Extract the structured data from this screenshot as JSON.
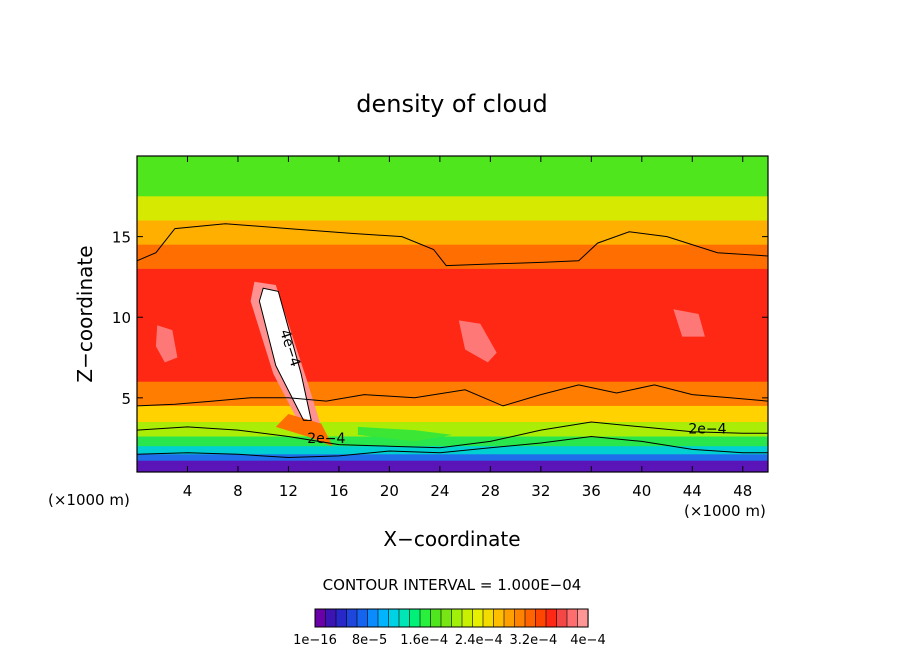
{
  "chart_data": {
    "type": "heatmap",
    "title": "density of cloud",
    "xlabel": "X−coordinate",
    "ylabel": "Z−coordinate",
    "x_unit_left": "(×1000 m)",
    "x_unit_right": "(×1000 m)",
    "xlim": [
      0,
      50
    ],
    "ylim": [
      0.4,
      20
    ],
    "x_ticks": [
      4,
      8,
      12,
      16,
      20,
      24,
      28,
      32,
      36,
      40,
      44,
      48
    ],
    "y_ticks": [
      5,
      10,
      15
    ],
    "contour_interval_text": "CONTOUR INTERVAL = 1.000E−04",
    "contour_labels": [
      {
        "text": "4e−4",
        "x": 11.8,
        "z": 8.0
      },
      {
        "text": "2e−4",
        "x": 15.0,
        "z": 2.2
      },
      {
        "text": "2e−4",
        "x": 45.2,
        "z": 2.8
      }
    ],
    "colorbar": {
      "colors": [
        "#6a00a8",
        "#3c14b4",
        "#2828c8",
        "#1e46dc",
        "#1464f0",
        "#0a8cff",
        "#00b4ff",
        "#00d2e6",
        "#00e6b4",
        "#00f078",
        "#28f03c",
        "#50e61e",
        "#78e614",
        "#a0f00a",
        "#c8f000",
        "#e6f000",
        "#f5dc00",
        "#ffbe00",
        "#ffa000",
        "#ff8200",
        "#ff6400",
        "#ff4600",
        "#ff2814",
        "#f54646",
        "#ff6e6e",
        "#ff9696"
      ],
      "tick_labels": [
        "1e−16",
        "8e−5",
        "1.6e−4",
        "2.4e−4",
        "3.2e−4",
        "4e−4"
      ],
      "range": [
        0,
        0.0004
      ]
    },
    "color_scale": {
      "stops": [
        {
          "value": 0.0,
          "color": "#6a00a8"
        },
        {
          "value": 4e-05,
          "color": "#2850e6"
        },
        {
          "value": 8e-05,
          "color": "#00c8f0"
        },
        {
          "value": 0.00012,
          "color": "#00e678"
        },
        {
          "value": 0.00016,
          "color": "#50e61e"
        },
        {
          "value": 0.0002,
          "color": "#c8f000"
        },
        {
          "value": 0.00024,
          "color": "#ffd200"
        },
        {
          "value": 0.00028,
          "color": "#ff8c00"
        },
        {
          "value": 0.00032,
          "color": "#ff5000"
        },
        {
          "value": 0.00035,
          "color": "#ff2814"
        },
        {
          "value": 0.00038,
          "color": "#ff7878"
        },
        {
          "value": 0.0004,
          "color": "#ffaaaa"
        },
        {
          "value": 0.00045,
          "color": "#ffffff"
        }
      ]
    },
    "bands_top_to_bottom": [
      {
        "z_top": 20.0,
        "z_bottom": 17.5,
        "value": 0.00016
      },
      {
        "z_top": 17.5,
        "z_bottom": 16.0,
        "value": 0.00021
      },
      {
        "z_top": 16.0,
        "z_bottom": 14.5,
        "value": 0.00026
      },
      {
        "z_top": 14.5,
        "z_bottom": 13.0,
        "value": 0.0003
      },
      {
        "z_top": 13.0,
        "z_bottom": 6.0,
        "value": 0.00035
      },
      {
        "z_top": 6.0,
        "z_bottom": 4.5,
        "value": 0.00029
      },
      {
        "z_top": 4.5,
        "z_bottom": 3.5,
        "value": 0.00024
      },
      {
        "z_top": 3.5,
        "z_bottom": 2.6,
        "value": 0.00019
      },
      {
        "z_top": 2.6,
        "z_bottom": 2.0,
        "value": 0.00014
      },
      {
        "z_top": 2.0,
        "z_bottom": 1.5,
        "value": 9e-05
      },
      {
        "z_top": 1.5,
        "z_bottom": 1.1,
        "value": 5e-05
      },
      {
        "z_top": 1.1,
        "z_bottom": 0.4,
        "value": 1e-05
      }
    ],
    "features": [
      {
        "name": "tilted-core-outer",
        "value": 0.00039,
        "points": [
          [
            9.3,
            12.2
          ],
          [
            11.0,
            12.0
          ],
          [
            13.5,
            6.0
          ],
          [
            14.6,
            3.2
          ],
          [
            13.0,
            3.2
          ],
          [
            10.8,
            6.5
          ],
          [
            9.0,
            11.0
          ]
        ]
      },
      {
        "name": "tilted-core-max",
        "value": 0.00045,
        "points": [
          [
            10.0,
            11.8
          ],
          [
            11.2,
            11.6
          ],
          [
            13.0,
            6.5
          ],
          [
            13.8,
            3.6
          ],
          [
            13.2,
            3.6
          ],
          [
            11.0,
            7.0
          ],
          [
            9.7,
            11.0
          ]
        ]
      },
      {
        "name": "patch-left",
        "value": 0.00038,
        "points": [
          [
            1.6,
            9.5
          ],
          [
            2.8,
            9.2
          ],
          [
            3.2,
            7.5
          ],
          [
            2.2,
            7.2
          ],
          [
            1.5,
            8.2
          ]
        ]
      },
      {
        "name": "patch-center",
        "value": 0.00038,
        "points": [
          [
            25.5,
            9.8
          ],
          [
            27.2,
            9.6
          ],
          [
            28.5,
            7.8
          ],
          [
            27.8,
            7.2
          ],
          [
            26.0,
            8.0
          ]
        ]
      },
      {
        "name": "patch-right",
        "value": 0.00038,
        "points": [
          [
            42.5,
            10.5
          ],
          [
            44.5,
            10.2
          ],
          [
            45.0,
            8.8
          ],
          [
            43.2,
            8.8
          ]
        ]
      },
      {
        "name": "green-lens",
        "value": 0.00015,
        "points": [
          [
            17.5,
            3.2
          ],
          [
            22.0,
            3.0
          ],
          [
            25.0,
            2.7
          ],
          [
            22.0,
            2.3
          ],
          [
            17.5,
            2.7
          ]
        ]
      },
      {
        "name": "left-descent",
        "value": 0.0003,
        "points": [
          [
            12.0,
            4.0
          ],
          [
            14.6,
            3.4
          ],
          [
            15.5,
            2.0
          ],
          [
            13.5,
            2.6
          ],
          [
            11.0,
            3.2
          ]
        ]
      }
    ],
    "contour_lines_2e4": [
      [
        [
          0,
          13.5
        ],
        [
          1.5,
          14.0
        ],
        [
          3.0,
          15.5
        ],
        [
          7.0,
          15.8
        ],
        [
          12.0,
          15.5
        ],
        [
          17.0,
          15.2
        ],
        [
          21.0,
          15.0
        ],
        [
          23.5,
          14.2
        ],
        [
          24.5,
          13.2
        ],
        [
          28.0,
          13.3
        ],
        [
          32.0,
          13.4
        ],
        [
          35.0,
          13.5
        ],
        [
          36.5,
          14.6
        ],
        [
          39.0,
          15.3
        ],
        [
          42.0,
          15.0
        ],
        [
          46.0,
          14.0
        ],
        [
          50.0,
          13.8
        ]
      ],
      [
        [
          0,
          4.5
        ],
        [
          3.0,
          4.6
        ],
        [
          6.0,
          4.8
        ],
        [
          9.0,
          5.0
        ],
        [
          12.0,
          5.0
        ],
        [
          15.0,
          4.8
        ],
        [
          18.0,
          5.2
        ],
        [
          22.0,
          5.0
        ],
        [
          26.0,
          5.5
        ],
        [
          29.0,
          4.5
        ],
        [
          32.0,
          5.2
        ],
        [
          35.0,
          5.8
        ],
        [
          38.0,
          5.3
        ],
        [
          41.0,
          5.8
        ],
        [
          44.0,
          5.2
        ],
        [
          47.0,
          5.0
        ],
        [
          50.0,
          4.8
        ]
      ],
      [
        [
          0,
          3.0
        ],
        [
          4.0,
          3.2
        ],
        [
          8.0,
          3.0
        ],
        [
          12.0,
          2.6
        ],
        [
          16.0,
          2.1
        ],
        [
          20.0,
          2.0
        ],
        [
          24.0,
          1.9
        ],
        [
          28.0,
          2.3
        ],
        [
          32.0,
          3.0
        ],
        [
          36.0,
          3.5
        ],
        [
          40.0,
          3.2
        ],
        [
          44.0,
          2.9
        ],
        [
          48.0,
          2.8
        ],
        [
          50.0,
          2.8
        ]
      ],
      [
        [
          0,
          1.5
        ],
        [
          4.0,
          1.6
        ],
        [
          8.0,
          1.5
        ],
        [
          12.0,
          1.3
        ],
        [
          16.0,
          1.4
        ],
        [
          20.0,
          1.7
        ],
        [
          24.0,
          1.6
        ],
        [
          28.0,
          1.9
        ],
        [
          32.0,
          2.2
        ],
        [
          36.0,
          2.6
        ],
        [
          40.0,
          2.3
        ],
        [
          44.0,
          1.8
        ],
        [
          48.0,
          1.6
        ],
        [
          50.0,
          1.6
        ]
      ]
    ],
    "contour_lines_4e4": [
      [
        [
          10.0,
          11.8
        ],
        [
          11.2,
          11.6
        ],
        [
          13.0,
          6.5
        ],
        [
          13.8,
          3.6
        ],
        [
          13.2,
          3.6
        ],
        [
          11.0,
          7.0
        ],
        [
          9.7,
          11.0
        ],
        [
          10.0,
          11.8
        ]
      ]
    ]
  }
}
